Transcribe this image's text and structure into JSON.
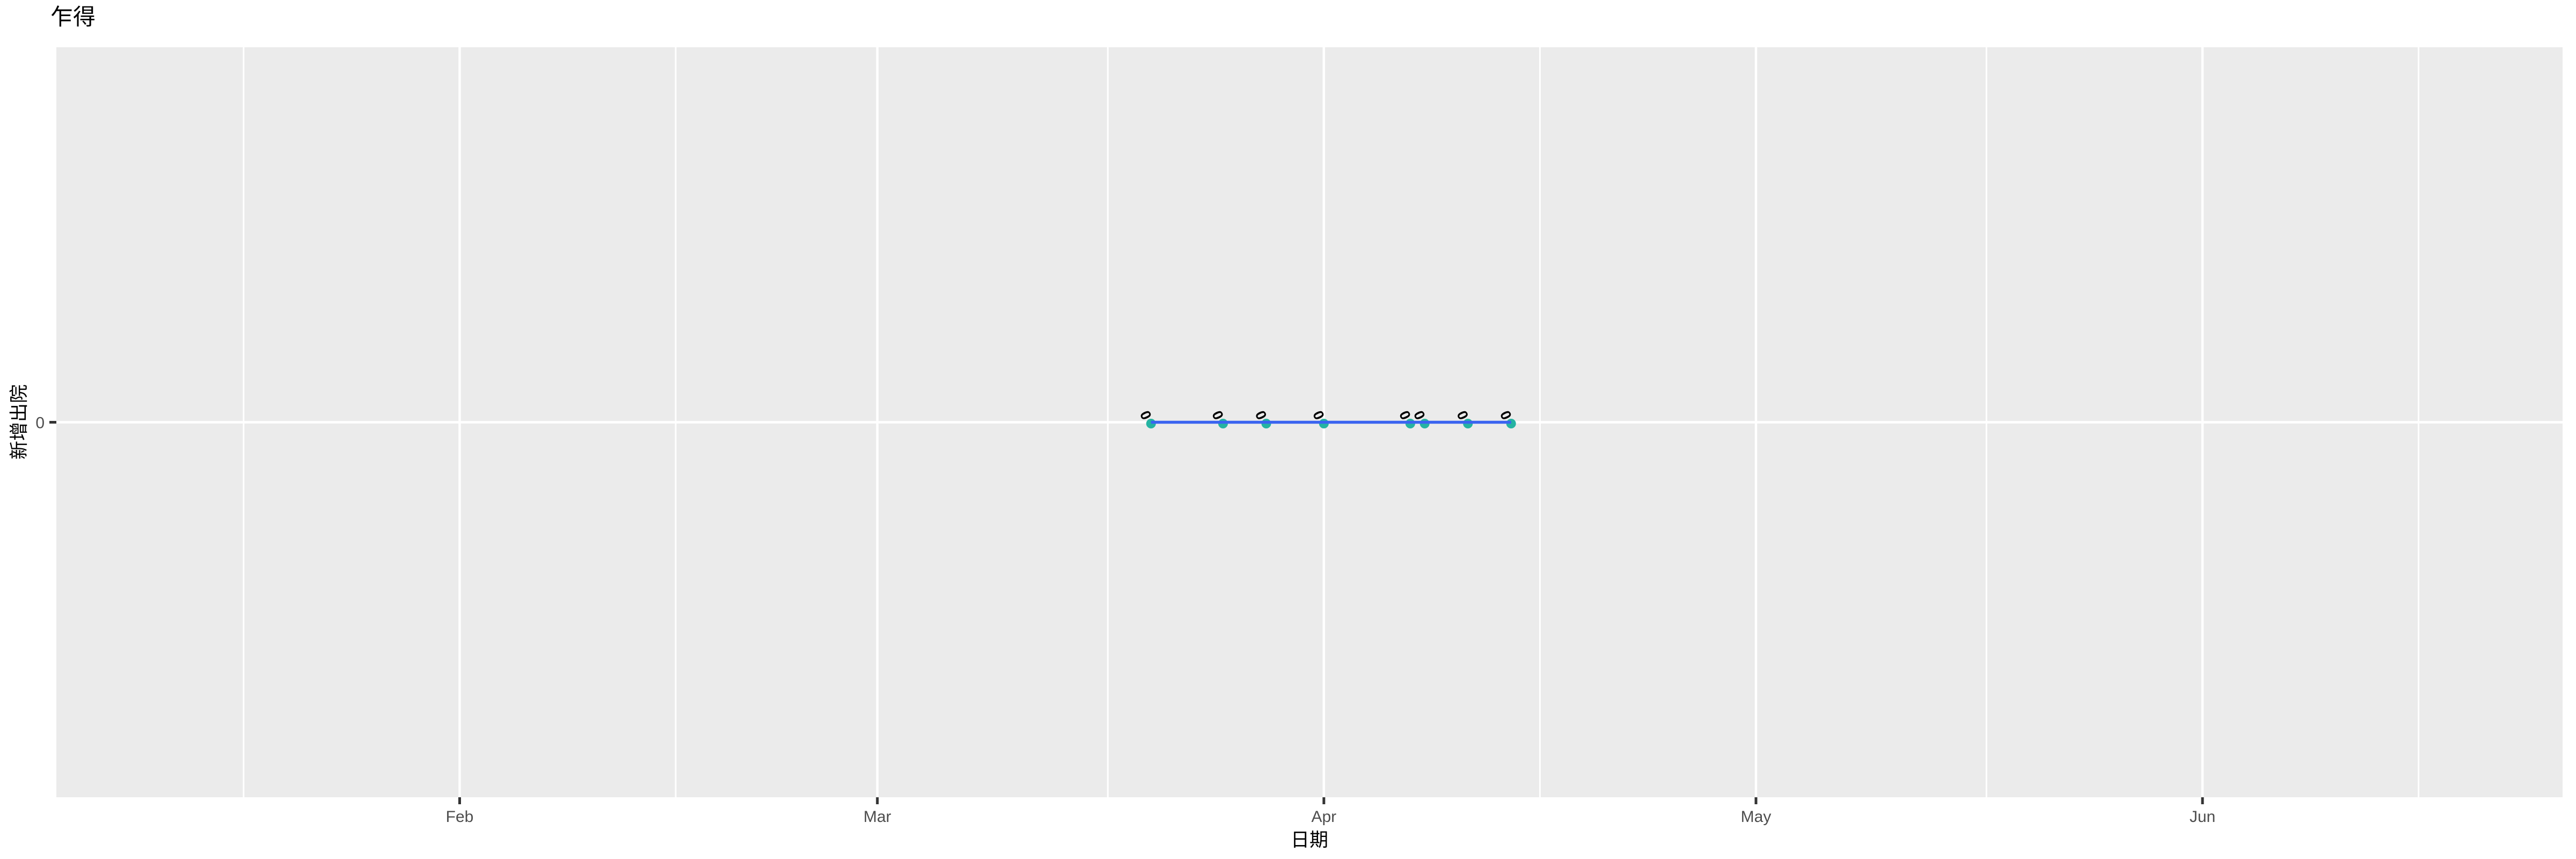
{
  "title": "乍得",
  "chart_data": {
    "type": "line",
    "title": "乍得",
    "xlabel": "日期",
    "ylabel": "新增出院",
    "x_domain": [
      "2020-01-04",
      "2020-06-26"
    ],
    "ylim": [
      -0.05,
      0.05
    ],
    "grid": true,
    "legend": false,
    "x_major_ticks": [
      {
        "date": "2020-02-01",
        "label": "Feb"
      },
      {
        "date": "2020-03-01",
        "label": "Mar"
      },
      {
        "date": "2020-04-01",
        "label": "Apr"
      },
      {
        "date": "2020-05-01",
        "label": "May"
      },
      {
        "date": "2020-06-01",
        "label": "Jun"
      }
    ],
    "x_minor_ticks": [
      "2020-01-17",
      "2020-02-16",
      "2020-03-17",
      "2020-04-16",
      "2020-05-17",
      "2020-06-16"
    ],
    "y_ticks": [
      {
        "value": 0,
        "label": "0"
      }
    ],
    "series": [
      {
        "name": "新增出院",
        "line_color": "#3A64F0",
        "point_color": "#25B3A2",
        "label_color": "#000000",
        "points": [
          {
            "date": "2020-03-20",
            "value": 0,
            "label": "0"
          },
          {
            "date": "2020-03-25",
            "value": 0,
            "label": "0"
          },
          {
            "date": "2020-03-28",
            "value": 0,
            "label": "0"
          },
          {
            "date": "2020-04-01",
            "value": 0,
            "label": "0"
          },
          {
            "date": "2020-04-07",
            "value": 0,
            "label": "0"
          },
          {
            "date": "2020-04-08",
            "value": 0,
            "label": "0"
          },
          {
            "date": "2020-04-11",
            "value": 0,
            "label": "0"
          },
          {
            "date": "2020-04-14",
            "value": 0,
            "label": "0"
          }
        ]
      }
    ],
    "colors": {
      "background": "#FFFFFF",
      "panel_bg": "#EBEBEB",
      "grid": "#FFFFFF",
      "tick_mark": "#333333",
      "tick_label": "#4D4D4D",
      "title": "#000000"
    }
  }
}
